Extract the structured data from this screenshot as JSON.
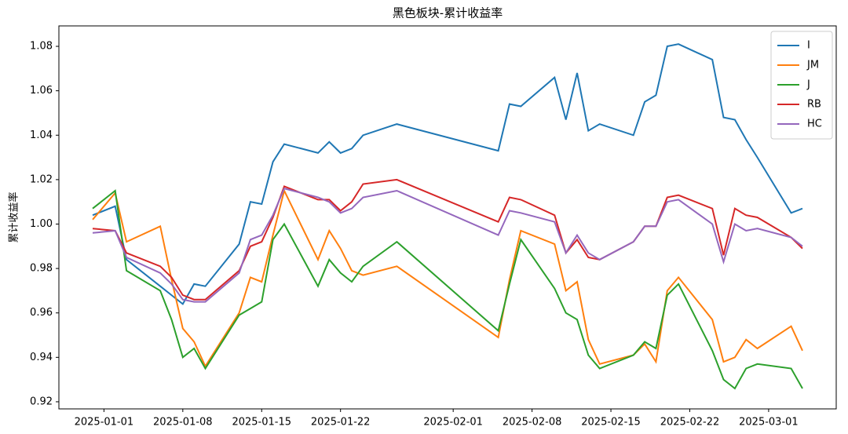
{
  "chart_data": {
    "type": "line",
    "title": "黑色板块-累计收益率",
    "y_label": "累计收益率",
    "x": [
      "2024-12-31",
      "2025-01-02",
      "2025-01-03",
      "2025-01-06",
      "2025-01-07",
      "2025-01-08",
      "2025-01-09",
      "2025-01-10",
      "2025-01-13",
      "2025-01-14",
      "2025-01-15",
      "2025-01-16",
      "2025-01-17",
      "2025-01-20",
      "2025-01-21",
      "2025-01-22",
      "2025-01-23",
      "2025-01-24",
      "2025-01-27",
      "2025-02-05",
      "2025-02-06",
      "2025-02-07",
      "2025-02-10",
      "2025-02-11",
      "2025-02-12",
      "2025-02-13",
      "2025-02-14",
      "2025-02-17",
      "2025-02-18",
      "2025-02-19",
      "2025-02-20",
      "2025-02-21",
      "2025-02-24",
      "2025-02-25",
      "2025-02-26",
      "2025-02-27",
      "2025-02-28",
      "2025-03-03",
      "2025-03-04"
    ],
    "series": [
      {
        "name": "I",
        "color": "#1f77b4",
        "values": [
          1.004,
          1.008,
          0.984,
          0.972,
          0.968,
          0.964,
          0.973,
          0.972,
          0.991,
          1.01,
          1.009,
          1.028,
          1.036,
          1.032,
          1.037,
          1.032,
          1.034,
          1.04,
          1.045,
          1.033,
          1.054,
          1.053,
          1.066,
          1.047,
          1.068,
          1.042,
          1.045,
          1.04,
          1.055,
          1.058,
          1.08,
          1.081,
          1.074,
          1.048,
          1.047,
          1.038,
          1.03,
          1.005,
          1.007
        ]
      },
      {
        "name": "JM",
        "color": "#ff7f0e",
        "values": [
          1.002,
          1.014,
          0.992,
          0.999,
          0.975,
          0.953,
          0.947,
          0.936,
          0.96,
          0.976,
          0.974,
          0.995,
          1.015,
          0.984,
          0.997,
          0.989,
          0.979,
          0.977,
          0.981,
          0.949,
          0.975,
          0.997,
          0.991,
          0.97,
          0.974,
          0.948,
          0.937,
          0.941,
          0.946,
          0.938,
          0.97,
          0.976,
          0.957,
          0.938,
          0.94,
          0.948,
          0.944,
          0.954,
          0.943
        ]
      },
      {
        "name": "J",
        "color": "#2ca02c",
        "values": [
          1.007,
          1.015,
          0.979,
          0.97,
          0.957,
          0.94,
          0.944,
          0.935,
          0.959,
          0.962,
          0.965,
          0.993,
          1.0,
          0.972,
          0.984,
          0.978,
          0.974,
          0.981,
          0.992,
          0.952,
          0.973,
          0.993,
          0.971,
          0.96,
          0.957,
          0.941,
          0.935,
          0.941,
          0.947,
          0.944,
          0.968,
          0.973,
          0.943,
          0.93,
          0.926,
          0.935,
          0.937,
          0.935,
          0.926
        ]
      },
      {
        "name": "RB",
        "color": "#d62728",
        "values": [
          0.998,
          0.997,
          0.987,
          0.981,
          0.976,
          0.968,
          0.966,
          0.966,
          0.979,
          0.99,
          0.992,
          1.003,
          1.017,
          1.011,
          1.011,
          1.006,
          1.01,
          1.018,
          1.02,
          1.001,
          1.012,
          1.011,
          1.004,
          0.987,
          0.993,
          0.985,
          0.984,
          0.992,
          0.999,
          0.999,
          1.012,
          1.013,
          1.007,
          0.986,
          1.007,
          1.004,
          1.003,
          0.994,
          0.989
        ]
      },
      {
        "name": "HC",
        "color": "#9467bd",
        "values": [
          0.996,
          0.997,
          0.985,
          0.978,
          0.973,
          0.966,
          0.965,
          0.965,
          0.978,
          0.993,
          0.995,
          1.004,
          1.016,
          1.012,
          1.01,
          1.005,
          1.007,
          1.012,
          1.015,
          0.995,
          1.006,
          1.005,
          1.001,
          0.987,
          0.995,
          0.987,
          0.984,
          0.992,
          0.999,
          0.999,
          1.01,
          1.011,
          1.0,
          0.983,
          1.0,
          0.997,
          0.998,
          0.994,
          0.99
        ]
      }
    ],
    "xlim": [
      "2024-12-28",
      "2025-03-07"
    ],
    "xticks": [
      "2025-01-01",
      "2025-01-08",
      "2025-01-15",
      "2025-01-22",
      "2025-02-01",
      "2025-02-08",
      "2025-02-15",
      "2025-02-22",
      "2025-03-01"
    ],
    "ylim": [
      0.9168,
      1.0892
    ],
    "yticks": [
      0.92,
      0.94,
      0.96,
      0.98,
      {
        "value": 1.0,
        "label": "1.00"
      },
      1.02,
      1.04,
      1.06,
      1.08
    ],
    "grid": false,
    "legend": "upper right"
  }
}
